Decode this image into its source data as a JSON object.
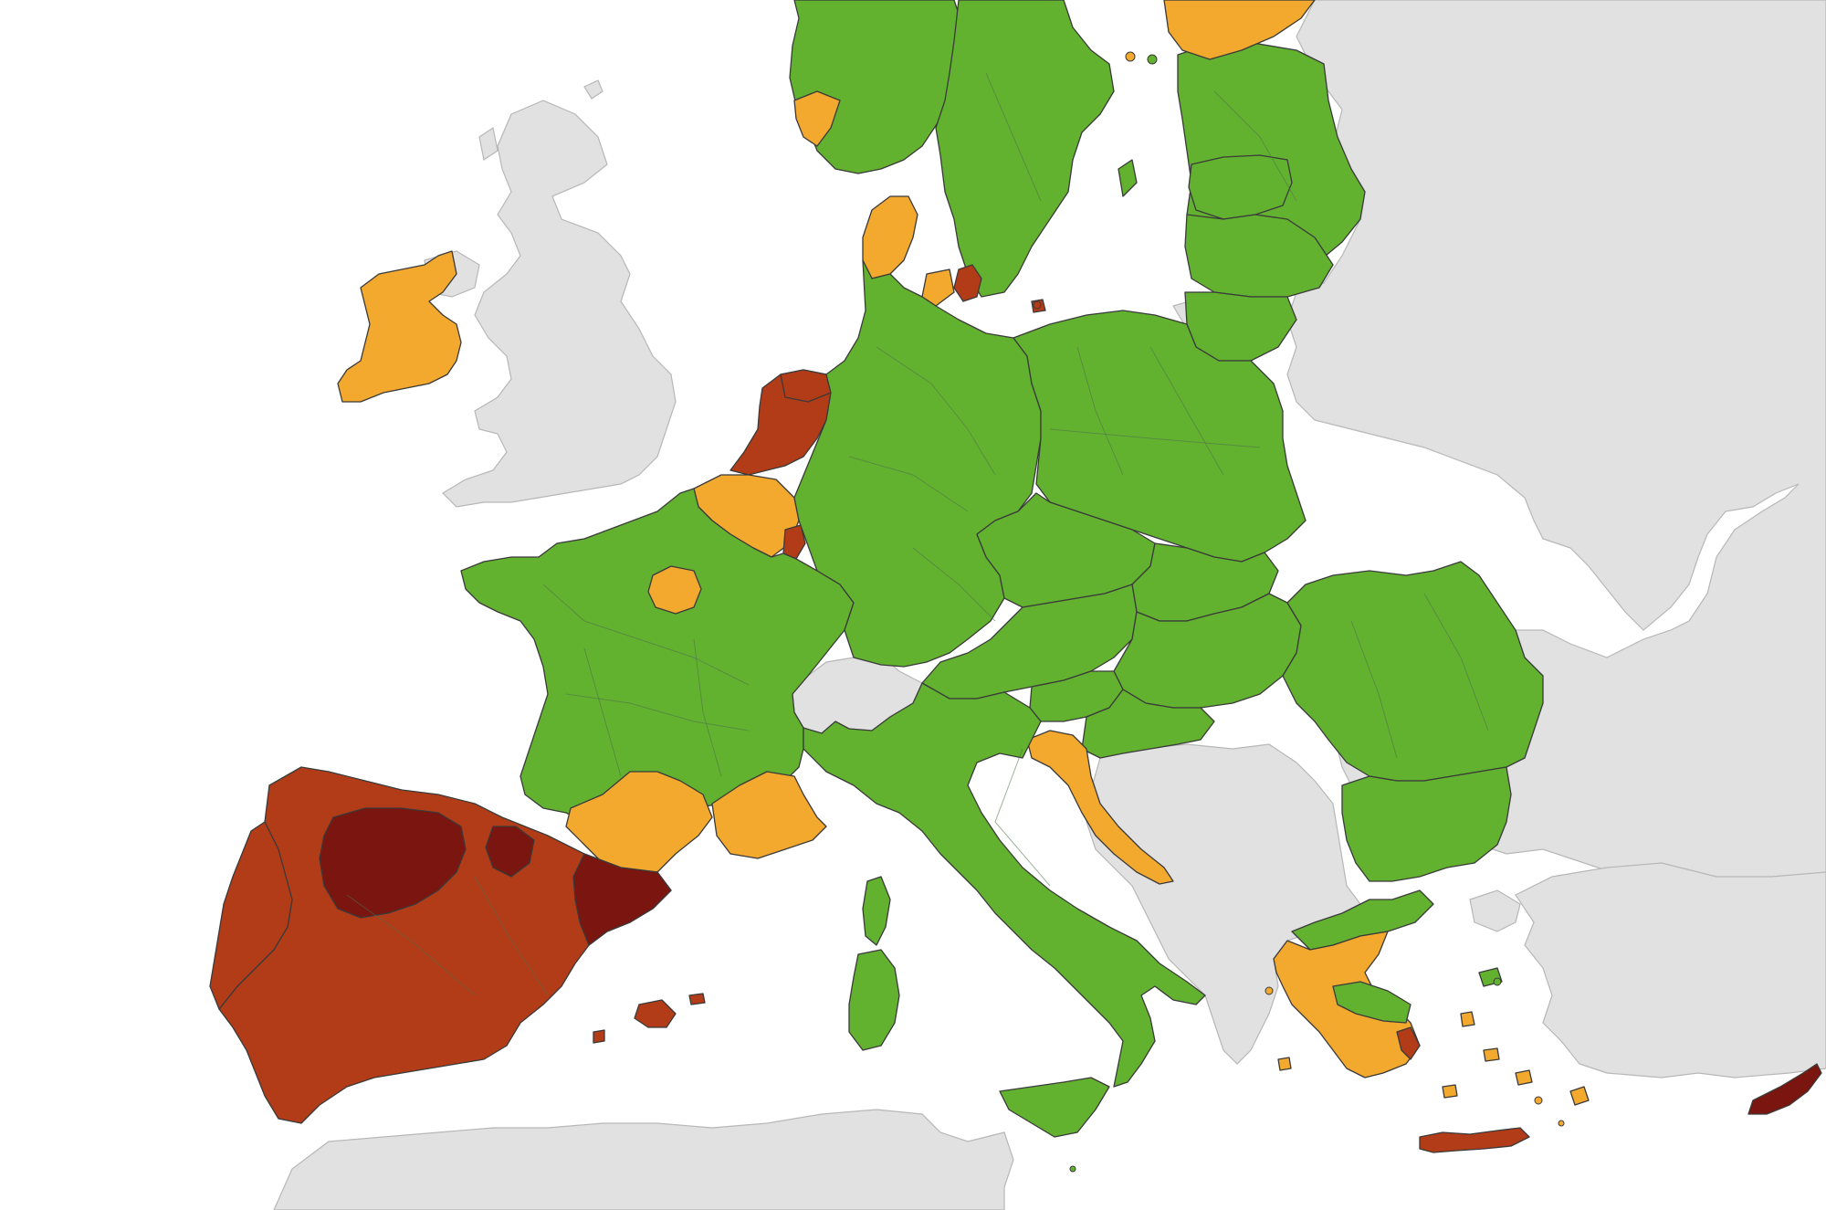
{
  "map": {
    "colors": {
      "sea": "#ffffff",
      "non_eu": "#e1e1e1",
      "green": "#62b22f",
      "orange": "#f2a92e",
      "red": "#b23c17",
      "dark_red": "#7a1510",
      "border": "#3a3a3a"
    },
    "categories": [
      "green",
      "orange",
      "red",
      "dark_red",
      "non_eu"
    ],
    "regions": [
      {
        "name": "ireland",
        "status": "orange"
      },
      {
        "name": "great-britain",
        "status": "non_eu"
      },
      {
        "name": "spain",
        "status": "red"
      },
      {
        "name": "spain-castilla-y-leon",
        "status": "dark_red"
      },
      {
        "name": "spain-catalonia",
        "status": "dark_red"
      },
      {
        "name": "balearic-islands",
        "status": "red"
      },
      {
        "name": "portugal",
        "status": "red"
      },
      {
        "name": "france",
        "status": "green"
      },
      {
        "name": "france-ile-de-france",
        "status": "orange"
      },
      {
        "name": "france-occitanie",
        "status": "orange"
      },
      {
        "name": "france-paca",
        "status": "orange"
      },
      {
        "name": "netherlands",
        "status": "red"
      },
      {
        "name": "belgium",
        "status": "orange"
      },
      {
        "name": "luxembourg",
        "status": "red"
      },
      {
        "name": "switzerland",
        "status": "non_eu"
      },
      {
        "name": "germany",
        "status": "green"
      },
      {
        "name": "denmark",
        "status": "orange"
      },
      {
        "name": "denmark-zealand",
        "status": "red"
      },
      {
        "name": "norway",
        "status": "green"
      },
      {
        "name": "norway-south",
        "status": "orange"
      },
      {
        "name": "sweden",
        "status": "green"
      },
      {
        "name": "finland-south",
        "status": "orange"
      },
      {
        "name": "estonia",
        "status": "green"
      },
      {
        "name": "latvia",
        "status": "green"
      },
      {
        "name": "lithuania",
        "status": "green"
      },
      {
        "name": "poland",
        "status": "green"
      },
      {
        "name": "czechia",
        "status": "green"
      },
      {
        "name": "slovakia",
        "status": "green"
      },
      {
        "name": "austria",
        "status": "green"
      },
      {
        "name": "hungary",
        "status": "green"
      },
      {
        "name": "slovenia",
        "status": "green"
      },
      {
        "name": "croatia",
        "status": "green"
      },
      {
        "name": "croatia-coast",
        "status": "orange"
      },
      {
        "name": "romania",
        "status": "green"
      },
      {
        "name": "bulgaria",
        "status": "green"
      },
      {
        "name": "italy",
        "status": "green"
      },
      {
        "name": "sardinia",
        "status": "green"
      },
      {
        "name": "corsica",
        "status": "green"
      },
      {
        "name": "sicily",
        "status": "green"
      },
      {
        "name": "greece",
        "status": "orange"
      },
      {
        "name": "greece-north",
        "status": "green"
      },
      {
        "name": "greece-attica",
        "status": "red"
      },
      {
        "name": "crete",
        "status": "red"
      },
      {
        "name": "cyprus",
        "status": "dark_red"
      },
      {
        "name": "balkans",
        "status": "non_eu"
      },
      {
        "name": "eastern-europe",
        "status": "non_eu"
      },
      {
        "name": "turkey",
        "status": "non_eu"
      },
      {
        "name": "north-africa",
        "status": "non_eu"
      },
      {
        "name": "russia-kaliningrad",
        "status": "non_eu"
      }
    ]
  }
}
